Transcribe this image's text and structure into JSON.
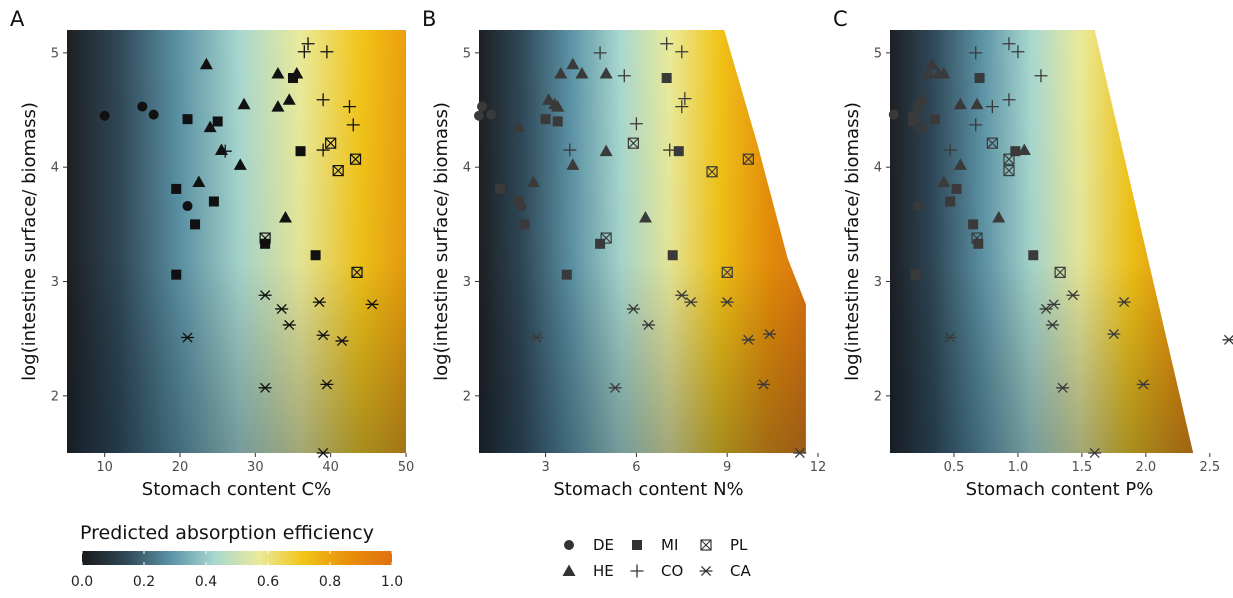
{
  "panels": [
    {
      "letter": "A",
      "xlabel": "Stomach content C%",
      "ylabel": "log(intestine surface/ biomass)",
      "xlim": [
        5,
        50
      ],
      "ylim": [
        1.5,
        5.2
      ],
      "xticks": [
        10,
        20,
        30,
        40,
        50
      ],
      "xtick_labels": [
        "10",
        "20",
        "30",
        "40",
        "50"
      ],
      "yticks": [
        2,
        3,
        4,
        5
      ],
      "ytick_labels": [
        "2",
        "3",
        "4",
        "5"
      ],
      "heat": {
        "e_min": 0.02,
        "e_max": 0.82
      }
    },
    {
      "letter": "B",
      "xlabel": "Stomach content N%",
      "ylabel": "log(intestine surface/ biomass)",
      "xlim": [
        0.8,
        12
      ],
      "ylim": [
        1.5,
        5.2
      ],
      "xticks": [
        3,
        6,
        9,
        12
      ],
      "xtick_labels": [
        "3",
        "6",
        "9",
        "12"
      ],
      "yticks": [
        2,
        3,
        4,
        5
      ],
      "ytick_labels": [
        "2",
        "3",
        "4",
        "5"
      ],
      "heat": {
        "e_min": 0.02,
        "e_max": 1.0
      },
      "boundary": [
        [
          8.9,
          5.2
        ],
        [
          10.0,
          4.2
        ],
        [
          11.0,
          3.2
        ],
        [
          11.6,
          2.8
        ],
        [
          11.6,
          1.5
        ]
      ]
    },
    {
      "letter": "C",
      "xlabel": "Stomach content P%",
      "ylabel": "log(intestine surface/ biomass)",
      "xlim": [
        0,
        2.65
      ],
      "ylim": [
        1.5,
        5.2
      ],
      "xticks": [
        0.5,
        1.0,
        1.5,
        2.0,
        2.5
      ],
      "xtick_labels": [
        "0.5",
        "1.0",
        "1.5",
        "2.0",
        "2.5"
      ],
      "yticks": [
        2,
        3,
        4,
        5
      ],
      "ytick_labels": [
        "2",
        "3",
        "4",
        "5"
      ],
      "heat": {
        "e_min": 0.02,
        "e_max": 1.0
      },
      "boundary": [
        [
          1.6,
          5.2
        ],
        [
          2.37,
          1.5
        ]
      ]
    }
  ],
  "legend": {
    "colorbar_title": "Predicted absorption efficiency",
    "colorbar_ticks": [
      0.0,
      0.2,
      0.4,
      0.6,
      0.8,
      1.0
    ],
    "colorbar_tick_labels": [
      "0.0",
      "0.2",
      "0.4",
      "0.6",
      "0.8",
      "1.0"
    ],
    "colormap": [
      "#1a1a1a",
      "#2f4858",
      "#5c93a6",
      "#a8d8d0",
      "#eaea9a",
      "#f2c418",
      "#e8900a",
      "#e07010"
    ],
    "groups": [
      {
        "code": "DE",
        "shape": "circle"
      },
      {
        "code": "MI",
        "shape": "square"
      },
      {
        "code": "PL",
        "shape": "boxx"
      },
      {
        "code": "HE",
        "shape": "triangle"
      },
      {
        "code": "CO",
        "shape": "plus"
      },
      {
        "code": "CA",
        "shape": "asterisk"
      }
    ]
  },
  "chart_data": [
    {
      "type": "heatmap",
      "panel": "A",
      "xlabel": "Stomach content C%",
      "ylabel": "log(intestine surface/ biomass)",
      "xlim": [
        5,
        50
      ],
      "ylim": [
        1.5,
        5.2
      ],
      "series": [
        {
          "name": "DE",
          "points": [
            [
              10,
              4.45
            ],
            [
              15,
              4.53
            ],
            [
              16.5,
              4.46
            ],
            [
              21,
              3.66
            ]
          ]
        },
        {
          "name": "MI",
          "points": [
            [
              19.5,
              3.81
            ],
            [
              21,
              4.42
            ],
            [
              22,
              3.5
            ],
            [
              24.5,
              3.7
            ],
            [
              25,
              4.4
            ],
            [
              19.5,
              3.06
            ],
            [
              31.3,
              3.33
            ],
            [
              35,
              4.78
            ],
            [
              36,
              4.14
            ],
            [
              38,
              3.23
            ]
          ]
        },
        {
          "name": "PL",
          "points": [
            [
              31.3,
              3.38
            ],
            [
              40,
              4.21
            ],
            [
              41,
              3.97
            ],
            [
              43.3,
              4.07
            ],
            [
              43.5,
              3.08
            ]
          ]
        },
        {
          "name": "HE",
          "points": [
            [
              23.5,
              4.9
            ],
            [
              24,
              4.35
            ],
            [
              22.5,
              3.87
            ],
            [
              25.5,
              4.15
            ],
            [
              28,
              4.02
            ],
            [
              28.5,
              4.55
            ],
            [
              33,
              4.53
            ],
            [
              33,
              4.82
            ],
            [
              34.5,
              4.59
            ],
            [
              35.5,
              4.82
            ],
            [
              34,
              3.56
            ]
          ]
        },
        {
          "name": "CO",
          "points": [
            [
              36.5,
              5.01
            ],
            [
              37,
              5.08
            ],
            [
              39.5,
              5.01
            ],
            [
              39,
              4.59
            ],
            [
              39,
              4.15
            ],
            [
              42.5,
              4.53
            ],
            [
              43,
              4.37
            ],
            [
              26,
              4.14
            ]
          ]
        },
        {
          "name": "CA",
          "points": [
            [
              31.3,
              2.88
            ],
            [
              33.5,
              2.76
            ],
            [
              34.5,
              2.62
            ],
            [
              38.5,
              2.82
            ],
            [
              39,
              2.53
            ],
            [
              41.5,
              2.48
            ],
            [
              45.5,
              2.8
            ],
            [
              21,
              2.51
            ],
            [
              31.3,
              2.07
            ],
            [
              39.5,
              2.1
            ],
            [
              39,
              1.5
            ]
          ]
        }
      ]
    },
    {
      "type": "heatmap",
      "panel": "B",
      "xlabel": "Stomach content N%",
      "ylabel": "log(intestine surface/ biomass)",
      "xlim": [
        0.8,
        12
      ],
      "ylim": [
        1.5,
        5.2
      ],
      "series": [
        {
          "name": "DE",
          "points": [
            [
              0.8,
              4.45
            ],
            [
              0.9,
              4.53
            ],
            [
              1.2,
              4.46
            ],
            [
              2.2,
              3.66
            ]
          ]
        },
        {
          "name": "MI",
          "points": [
            [
              1.5,
              3.81
            ],
            [
              2.1,
              3.7
            ],
            [
              2.3,
              3.5
            ],
            [
              3.0,
              4.42
            ],
            [
              3.4,
              4.4
            ],
            [
              3.7,
              3.06
            ],
            [
              4.8,
              3.33
            ],
            [
              7.0,
              4.78
            ],
            [
              7.4,
              4.14
            ],
            [
              7.2,
              3.23
            ]
          ]
        },
        {
          "name": "PL",
          "points": [
            [
              5.0,
              3.38
            ],
            [
              5.9,
              4.21
            ],
            [
              8.5,
              3.96
            ],
            [
              9.7,
              4.07
            ],
            [
              9.0,
              3.08
            ]
          ]
        },
        {
          "name": "HE",
          "points": [
            [
              2.1,
              4.35
            ],
            [
              2.6,
              3.87
            ],
            [
              3.1,
              4.59
            ],
            [
              3.4,
              4.53
            ],
            [
              3.3,
              4.55
            ],
            [
              3.5,
              4.82
            ],
            [
              3.9,
              4.9
            ],
            [
              4.2,
              4.82
            ],
            [
              5.0,
              4.82
            ],
            [
              3.9,
              4.02
            ],
            [
              5.0,
              4.14
            ],
            [
              6.3,
              3.56
            ]
          ]
        },
        {
          "name": "CO",
          "points": [
            [
              3.8,
              4.15
            ],
            [
              4.8,
              5.0
            ],
            [
              5.6,
              4.8
            ],
            [
              6.0,
              4.38
            ],
            [
              7.0,
              5.08
            ],
            [
              7.5,
              5.01
            ],
            [
              7.6,
              4.6
            ],
            [
              7.5,
              4.53
            ],
            [
              7.1,
              4.15
            ]
          ]
        },
        {
          "name": "CA",
          "points": [
            [
              2.7,
              2.51
            ],
            [
              5.9,
              2.76
            ],
            [
              6.4,
              2.62
            ],
            [
              7.5,
              2.88
            ],
            [
              7.8,
              2.82
            ],
            [
              9.0,
              2.82
            ],
            [
              9.7,
              2.49
            ],
            [
              10.4,
              2.54
            ],
            [
              10.2,
              2.1
            ],
            [
              5.3,
              2.07
            ],
            [
              11.4,
              1.5
            ]
          ]
        }
      ]
    },
    {
      "type": "heatmap",
      "panel": "C",
      "xlabel": "Stomach content P%",
      "ylabel": "log(intestine surface/ biomass)",
      "xlim": [
        0,
        2.65
      ],
      "ylim": [
        1.5,
        5.2
      ],
      "series": [
        {
          "name": "DE",
          "points": [
            [
              0.03,
              4.46
            ],
            [
              0.18,
              4.45
            ],
            [
              0.2,
              4.42
            ],
            [
              0.22,
              4.53
            ],
            [
              0.22,
              3.66
            ]
          ]
        },
        {
          "name": "MI",
          "points": [
            [
              0.18,
              4.4
            ],
            [
              0.35,
              4.42
            ],
            [
              0.47,
              3.7
            ],
            [
              0.52,
              3.81
            ],
            [
              0.65,
              3.5
            ],
            [
              0.69,
              3.33
            ],
            [
              0.7,
              4.78
            ],
            [
              0.98,
              4.14
            ],
            [
              1.12,
              3.23
            ],
            [
              0.2,
              3.06
            ]
          ]
        },
        {
          "name": "PL",
          "points": [
            [
              0.68,
              3.38
            ],
            [
              0.8,
              4.21
            ],
            [
              0.93,
              4.07
            ],
            [
              0.93,
              3.97
            ],
            [
              1.33,
              3.08
            ]
          ]
        },
        {
          "name": "HE",
          "points": [
            [
              0.25,
              4.6
            ],
            [
              0.25,
              4.35
            ],
            [
              0.3,
              4.82
            ],
            [
              0.33,
              4.9
            ],
            [
              0.38,
              4.82
            ],
            [
              0.42,
              4.82
            ],
            [
              0.42,
              3.87
            ],
            [
              0.55,
              4.02
            ],
            [
              0.55,
              4.55
            ],
            [
              0.68,
              4.55
            ],
            [
              1.05,
              4.15
            ],
            [
              0.85,
              3.56
            ]
          ]
        },
        {
          "name": "CO",
          "points": [
            [
              0.47,
              4.15
            ],
            [
              0.67,
              5.0
            ],
            [
              0.67,
              4.37
            ],
            [
              0.8,
              4.53
            ],
            [
              0.93,
              5.08
            ],
            [
              0.93,
              4.59
            ],
            [
              1.0,
              5.01
            ],
            [
              1.18,
              4.8
            ]
          ]
        },
        {
          "name": "CA",
          "points": [
            [
              0.47,
              2.51
            ],
            [
              1.22,
              2.76
            ],
            [
              1.27,
              2.62
            ],
            [
              1.28,
              2.8
            ],
            [
              1.43,
              2.88
            ],
            [
              1.35,
              2.07
            ],
            [
              1.75,
              2.54
            ],
            [
              1.83,
              2.82
            ],
            [
              1.98,
              2.1
            ],
            [
              1.6,
              1.5
            ],
            [
              2.65,
              2.49
            ]
          ]
        }
      ]
    }
  ]
}
